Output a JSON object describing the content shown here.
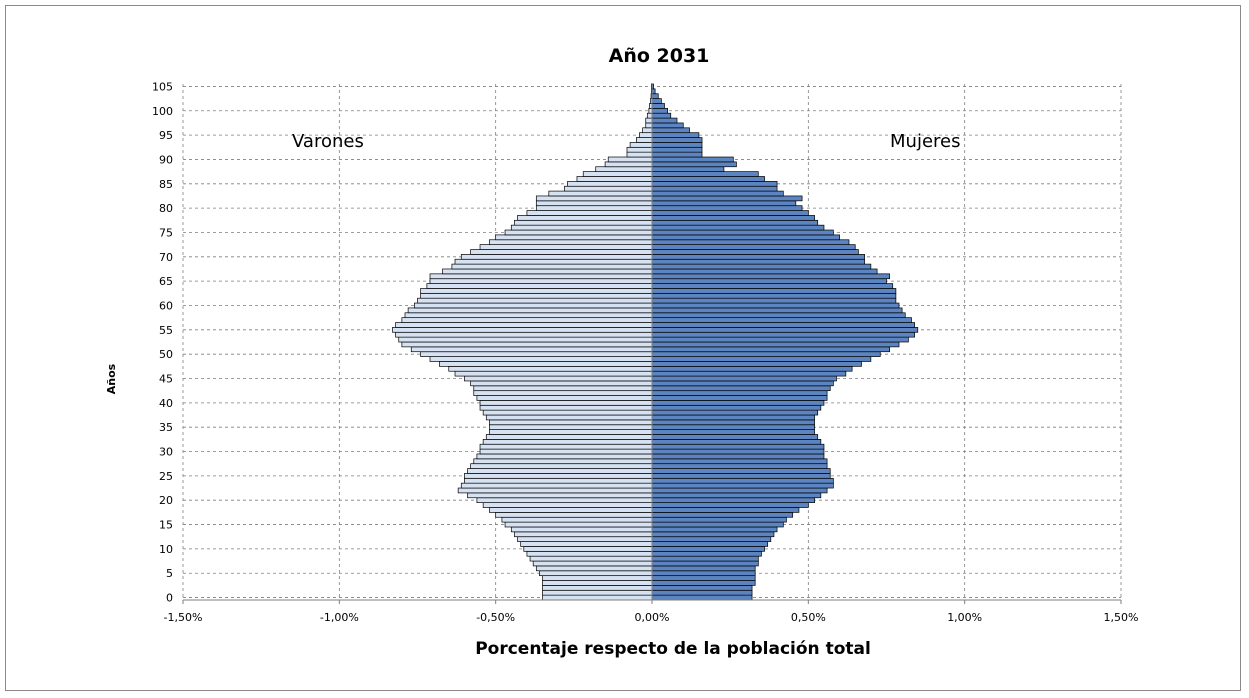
{
  "chart_data": {
    "type": "bar",
    "orientation": "horizontal-population-pyramid",
    "title": "Año 2031",
    "xlabel": "Porcentaje respecto de la población total",
    "ylabel": "Años",
    "left_label": "Varones",
    "right_label": "Mujeres",
    "xlim": [
      -1.5,
      1.5
    ],
    "x_ticks": [
      -1.5,
      -1.0,
      -0.5,
      0.0,
      0.5,
      1.0,
      1.5
    ],
    "x_tick_labels": [
      "-1,50%",
      "-1,00%",
      "-0,50%",
      "0,00%",
      "0,50%",
      "1,00%",
      "1,50%"
    ],
    "y_ticks": [
      0,
      5,
      10,
      15,
      20,
      25,
      30,
      35,
      40,
      45,
      50,
      55,
      60,
      65,
      70,
      75,
      80,
      85,
      90,
      95,
      100,
      105
    ],
    "y_tick_labels": [
      "0",
      "5",
      "10",
      "15",
      "20",
      "25",
      "30",
      "35",
      "40",
      "45",
      "50",
      "55",
      "60",
      "65",
      "70",
      "75",
      "80",
      "85",
      "90",
      "95",
      "100",
      "105"
    ],
    "grid": true,
    "ages": [
      0,
      1,
      2,
      3,
      4,
      5,
      6,
      7,
      8,
      9,
      10,
      11,
      12,
      13,
      14,
      15,
      16,
      17,
      18,
      19,
      20,
      21,
      22,
      23,
      24,
      25,
      26,
      27,
      28,
      29,
      30,
      31,
      32,
      33,
      34,
      35,
      36,
      37,
      38,
      39,
      40,
      41,
      42,
      43,
      44,
      45,
      46,
      47,
      48,
      49,
      50,
      51,
      52,
      53,
      54,
      55,
      56,
      57,
      58,
      59,
      60,
      61,
      62,
      63,
      64,
      65,
      66,
      67,
      68,
      69,
      70,
      71,
      72,
      73,
      74,
      75,
      76,
      77,
      78,
      79,
      80,
      81,
      82,
      83,
      84,
      85,
      86,
      87,
      88,
      89,
      90,
      91,
      92,
      93,
      94,
      95,
      96,
      97,
      98,
      99,
      100,
      101,
      102,
      103,
      104,
      105
    ],
    "series": [
      {
        "name": "Varones",
        "color": "#d6e2f2",
        "values": [
          -0.35,
          -0.35,
          -0.35,
          -0.35,
          -0.35,
          -0.36,
          -0.37,
          -0.38,
          -0.39,
          -0.4,
          -0.41,
          -0.42,
          -0.43,
          -0.44,
          -0.45,
          -0.47,
          -0.48,
          -0.5,
          -0.52,
          -0.54,
          -0.56,
          -0.59,
          -0.62,
          -0.61,
          -0.6,
          -0.6,
          -0.59,
          -0.58,
          -0.57,
          -0.56,
          -0.55,
          -0.55,
          -0.54,
          -0.53,
          -0.52,
          -0.52,
          -0.52,
          -0.53,
          -0.54,
          -0.55,
          -0.55,
          -0.56,
          -0.57,
          -0.57,
          -0.58,
          -0.6,
          -0.63,
          -0.65,
          -0.68,
          -0.71,
          -0.74,
          -0.77,
          -0.8,
          -0.81,
          -0.82,
          -0.83,
          -0.82,
          -0.8,
          -0.79,
          -0.78,
          -0.76,
          -0.75,
          -0.74,
          -0.74,
          -0.72,
          -0.71,
          -0.71,
          -0.67,
          -0.64,
          -0.63,
          -0.61,
          -0.58,
          -0.55,
          -0.52,
          -0.5,
          -0.47,
          -0.45,
          -0.44,
          -0.43,
          -0.4,
          -0.37,
          -0.37,
          -0.37,
          -0.33,
          -0.28,
          -0.27,
          -0.24,
          -0.22,
          -0.18,
          -0.15,
          -0.14,
          -0.08,
          -0.08,
          -0.07,
          -0.05,
          -0.04,
          -0.03,
          -0.02,
          -0.02,
          -0.015,
          -0.01,
          -0.008,
          -0.005,
          -0.003,
          -0.002,
          -0.002
        ]
      },
      {
        "name": "Mujeres",
        "color": "#5b84c0",
        "values": [
          0.32,
          0.32,
          0.32,
          0.33,
          0.33,
          0.33,
          0.33,
          0.34,
          0.34,
          0.35,
          0.36,
          0.37,
          0.38,
          0.39,
          0.4,
          0.42,
          0.43,
          0.45,
          0.47,
          0.5,
          0.52,
          0.54,
          0.56,
          0.58,
          0.58,
          0.57,
          0.57,
          0.56,
          0.56,
          0.55,
          0.55,
          0.55,
          0.54,
          0.53,
          0.52,
          0.52,
          0.52,
          0.52,
          0.53,
          0.54,
          0.55,
          0.56,
          0.56,
          0.57,
          0.58,
          0.59,
          0.62,
          0.64,
          0.67,
          0.7,
          0.73,
          0.76,
          0.79,
          0.82,
          0.84,
          0.85,
          0.84,
          0.83,
          0.81,
          0.8,
          0.79,
          0.78,
          0.78,
          0.78,
          0.77,
          0.75,
          0.76,
          0.72,
          0.7,
          0.68,
          0.68,
          0.66,
          0.65,
          0.63,
          0.6,
          0.58,
          0.55,
          0.53,
          0.52,
          0.5,
          0.48,
          0.46,
          0.48,
          0.42,
          0.4,
          0.4,
          0.36,
          0.34,
          0.23,
          0.27,
          0.26,
          0.16,
          0.16,
          0.16,
          0.16,
          0.15,
          0.12,
          0.1,
          0.08,
          0.06,
          0.05,
          0.04,
          0.03,
          0.02,
          0.01,
          0.005
        ]
      }
    ]
  }
}
